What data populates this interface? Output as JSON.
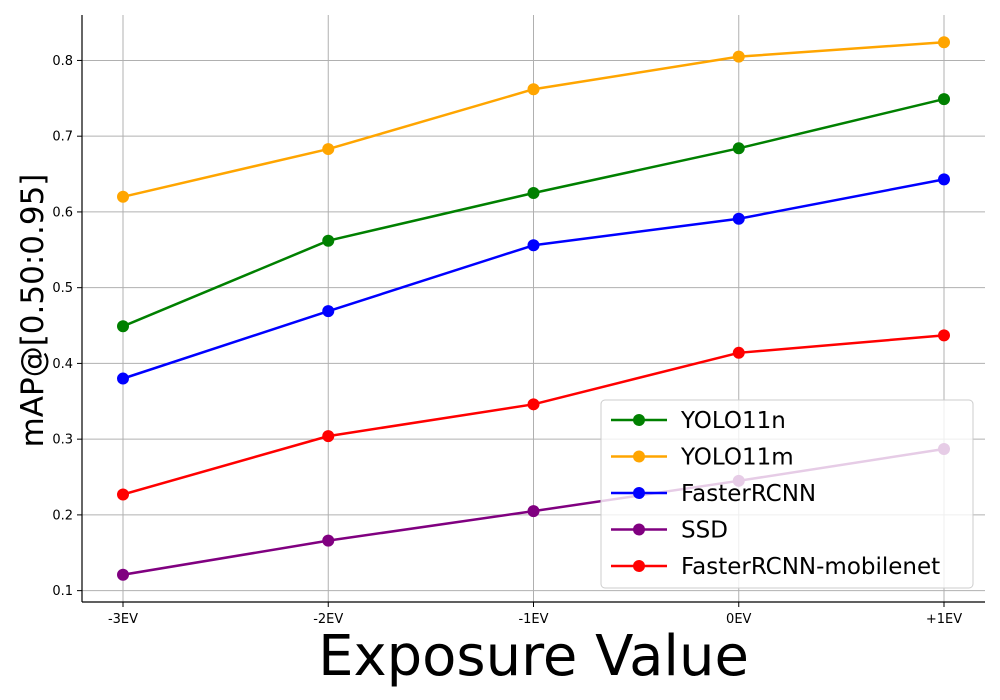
{
  "chart_data": {
    "type": "line",
    "title": "",
    "xlabel": "Exposure Value",
    "ylabel": "mAP@[0.50:0.95]",
    "categories": [
      "-3EV",
      "-2EV",
      "-1EV",
      "0EV",
      "+1EV"
    ],
    "ylim": [
      0.085,
      0.86
    ],
    "yticks": [
      0.1,
      0.2,
      0.3,
      0.4,
      0.5,
      0.6,
      0.7,
      0.8
    ],
    "grid": true,
    "legend_position": "lower-right",
    "series": [
      {
        "name": "YOLO11n",
        "color": "#008000",
        "values": [
          0.449,
          0.562,
          0.625,
          0.684,
          0.749
        ]
      },
      {
        "name": "YOLO11m",
        "color": "#FFA500",
        "values": [
          0.62,
          0.683,
          0.762,
          0.805,
          0.824
        ]
      },
      {
        "name": "FasterRCNN",
        "color": "#0000FF",
        "values": [
          0.38,
          0.469,
          0.556,
          0.591,
          0.643
        ]
      },
      {
        "name": "SSD",
        "color": "#800080",
        "values": [
          0.121,
          0.166,
          0.205,
          0.245,
          0.287
        ]
      },
      {
        "name": "FasterRCNN-mobilenet",
        "color": "#FF0000",
        "values": [
          0.227,
          0.304,
          0.346,
          0.414,
          0.437
        ]
      }
    ]
  }
}
